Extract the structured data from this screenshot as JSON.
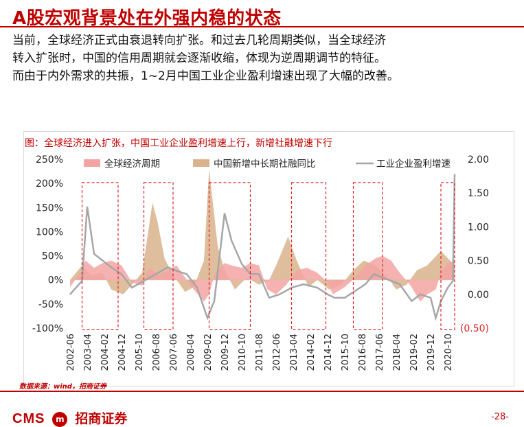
{
  "slide": {
    "title": "A股宏观背景处在外强内稳的状态",
    "body_lines": [
      "当前，全球经济正式由衰退转向扩张。和过去几轮周期类似，当全球经济",
      "转入扩张时，中国的信用周期就会逐渐收缩，体现为逆周期调节的特征。",
      "而由于内外需求的共振，1~2月中国工业企业盈利增速出现了大幅的改善。"
    ],
    "chart_caption": "图：全球经济进入扩张，中国工业企业盈利增速上行，新增社融增速下行",
    "source": "数据来源：wind，招商证券",
    "page_number": "-28-",
    "logo": {
      "latin": "CMS",
      "badge": "m",
      "chinese": "招商证券"
    }
  },
  "colors": {
    "brand": "#c00000",
    "global_cycle": "#f4a3a3",
    "credit": "#d9b38c",
    "profit_line": "#a6a6a6",
    "box": "#e02020"
  },
  "chart_data": {
    "type": "area",
    "title": "",
    "legend": [
      "全球经济周期",
      "中国新增中长期社融同比",
      "工业企业盈利增速"
    ],
    "x_tick_labels": [
      "2002-06",
      "2003-04",
      "2004-02",
      "2004-12",
      "2005-10",
      "2006-08",
      "2007-06",
      "2008-04",
      "2009-02",
      "2009-12",
      "2010-10",
      "2011-08",
      "2012-06",
      "2013-04",
      "2014-02",
      "2014-12",
      "2015-10",
      "2016-08",
      "2017-06",
      "2018-04",
      "2019-02",
      "2019-12",
      "2020-10"
    ],
    "x_range": [
      "2002-06",
      "2021-02"
    ],
    "left_axis": {
      "ticks": [
        "250%",
        "200%",
        "150%",
        "100%",
        "50%",
        "0%",
        "-50%",
        "-100%"
      ],
      "ylim": [
        -100,
        250
      ]
    },
    "right_axis": {
      "ticks": [
        "2.00",
        "1.50",
        "1.00",
        "0.50",
        "0.00",
        "(0.50)"
      ],
      "ylim": [
        -0.5,
        2.0
      ]
    },
    "highlight_periods": [
      [
        "2003-01",
        "2004-10"
      ],
      [
        "2006-01",
        "2007-06"
      ],
      [
        "2009-03",
        "2011-03"
      ],
      [
        "2013-03",
        "2014-11"
      ],
      [
        "2016-03",
        "2017-08"
      ],
      [
        "2020-06",
        "2021-02"
      ]
    ],
    "series": [
      {
        "name": "全球经济周期",
        "axis": "left",
        "points": [
          [
            "2002-06",
            -15
          ],
          [
            "2003-01",
            20
          ],
          [
            "2003-03",
            40
          ],
          [
            "2003-08",
            25
          ],
          [
            "2004-01",
            35
          ],
          [
            "2004-06",
            40
          ],
          [
            "2004-12",
            30
          ],
          [
            "2005-06",
            -5
          ],
          [
            "2005-12",
            -12
          ],
          [
            "2006-04",
            25
          ],
          [
            "2006-10",
            10
          ],
          [
            "2007-03",
            20
          ],
          [
            "2007-08",
            30
          ],
          [
            "2008-01",
            5
          ],
          [
            "2008-06",
            -20
          ],
          [
            "2008-12",
            -45
          ],
          [
            "2009-03",
            -30
          ],
          [
            "2009-06",
            10
          ],
          [
            "2009-12",
            35
          ],
          [
            "2010-04",
            30
          ],
          [
            "2010-10",
            25
          ],
          [
            "2011-03",
            35
          ],
          [
            "2011-08",
            30
          ],
          [
            "2012-01",
            -20
          ],
          [
            "2012-06",
            -30
          ],
          [
            "2012-12",
            -10
          ],
          [
            "2013-06",
            20
          ],
          [
            "2013-12",
            25
          ],
          [
            "2014-06",
            15
          ],
          [
            "2014-12",
            -5
          ],
          [
            "2015-03",
            -30
          ],
          [
            "2015-10",
            -15
          ],
          [
            "2016-04",
            5
          ],
          [
            "2016-10",
            30
          ],
          [
            "2017-04",
            45
          ],
          [
            "2017-08",
            50
          ],
          [
            "2018-01",
            40
          ],
          [
            "2018-06",
            15
          ],
          [
            "2018-12",
            -10
          ],
          [
            "2019-06",
            -45
          ],
          [
            "2019-10",
            -30
          ],
          [
            "2020-03",
            -20
          ],
          [
            "2020-06",
            15
          ],
          [
            "2020-10",
            35
          ],
          [
            "2021-02",
            40
          ]
        ]
      },
      {
        "name": "中国新增中长期社融同比",
        "axis": "left",
        "points": [
          [
            "2002-06",
            0
          ],
          [
            "2003-01",
            30
          ],
          [
            "2003-06",
            10
          ],
          [
            "2004-01",
            15
          ],
          [
            "2004-06",
            -20
          ],
          [
            "2005-01",
            -30
          ],
          [
            "2005-06",
            -10
          ],
          [
            "2005-12",
            15
          ],
          [
            "2006-06",
            160
          ],
          [
            "2006-09",
            120
          ],
          [
            "2007-01",
            45
          ],
          [
            "2007-06",
            10
          ],
          [
            "2008-01",
            -25
          ],
          [
            "2008-06",
            -15
          ],
          [
            "2008-12",
            40
          ],
          [
            "2009-03",
            230
          ],
          [
            "2009-08",
            70
          ],
          [
            "2009-12",
            20
          ],
          [
            "2010-06",
            -20
          ],
          [
            "2011-01",
            5
          ],
          [
            "2011-08",
            -10
          ],
          [
            "2012-02",
            0
          ],
          [
            "2012-06",
            30
          ],
          [
            "2013-01",
            90
          ],
          [
            "2013-06",
            40
          ],
          [
            "2014-01",
            -15
          ],
          [
            "2014-06",
            0
          ],
          [
            "2015-01",
            -20
          ],
          [
            "2015-08",
            -10
          ],
          [
            "2016-03",
            20
          ],
          [
            "2016-09",
            40
          ],
          [
            "2017-04",
            30
          ],
          [
            "2017-12",
            0
          ],
          [
            "2018-04",
            -20
          ],
          [
            "2018-10",
            -10
          ],
          [
            "2019-04",
            20
          ],
          [
            "2019-10",
            30
          ],
          [
            "2020-06",
            60
          ],
          [
            "2020-10",
            45
          ],
          [
            "2021-02",
            30
          ]
        ]
      },
      {
        "name": "工业企业盈利增速",
        "axis": "right",
        "points": [
          [
            "2002-06",
            0.0
          ],
          [
            "2003-01",
            0.2
          ],
          [
            "2003-04",
            1.3
          ],
          [
            "2003-08",
            0.6
          ],
          [
            "2004-01",
            0.5
          ],
          [
            "2004-06",
            0.4
          ],
          [
            "2004-12",
            0.3
          ],
          [
            "2005-06",
            0.1
          ],
          [
            "2006-01",
            0.2
          ],
          [
            "2006-08",
            0.3
          ],
          [
            "2007-03",
            0.4
          ],
          [
            "2007-08",
            0.35
          ],
          [
            "2008-02",
            0.3
          ],
          [
            "2008-08",
            0.1
          ],
          [
            "2009-02",
            -0.35
          ],
          [
            "2009-06",
            -0.1
          ],
          [
            "2009-12",
            1.2
          ],
          [
            "2010-04",
            0.8
          ],
          [
            "2010-10",
            0.45
          ],
          [
            "2011-03",
            0.3
          ],
          [
            "2011-08",
            0.3
          ],
          [
            "2012-02",
            -0.05
          ],
          [
            "2012-08",
            0.0
          ],
          [
            "2013-03",
            0.1
          ],
          [
            "2013-10",
            0.15
          ],
          [
            "2014-06",
            0.1
          ],
          [
            "2014-12",
            0.0
          ],
          [
            "2015-04",
            -0.05
          ],
          [
            "2015-10",
            -0.05
          ],
          [
            "2016-04",
            0.05
          ],
          [
            "2016-10",
            0.15
          ],
          [
            "2017-03",
            0.3
          ],
          [
            "2017-08",
            0.25
          ],
          [
            "2018-01",
            0.2
          ],
          [
            "2018-06",
            0.15
          ],
          [
            "2019-01",
            -0.1
          ],
          [
            "2019-06",
            0.0
          ],
          [
            "2019-12",
            -0.05
          ],
          [
            "2020-03",
            -0.35
          ],
          [
            "2020-06",
            -0.1
          ],
          [
            "2020-10",
            0.1
          ],
          [
            "2021-01",
            0.2
          ],
          [
            "2021-02",
            1.78
          ]
        ]
      }
    ]
  }
}
